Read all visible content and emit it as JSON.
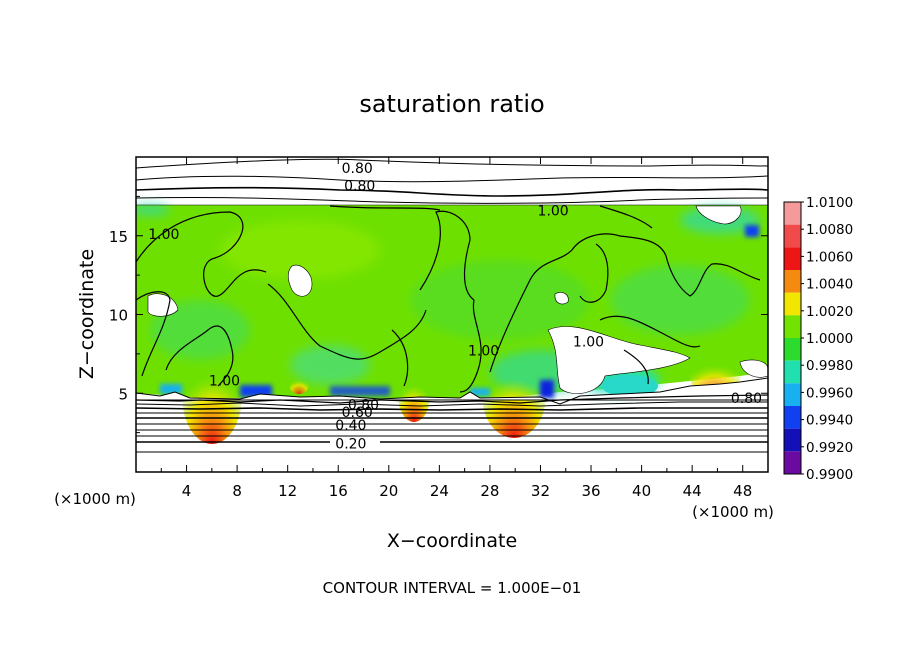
{
  "chart_data": {
    "type": "heatmap",
    "title": "saturation ratio",
    "xlabel": "X−coordinate",
    "ylabel": "Z−coordinate",
    "x_unit": "(×1000 m)",
    "x_unit_right": "(×1000 m)",
    "footer": "CONTOUR INTERVAL = 1.000E−01",
    "xlim": [
      0,
      50
    ],
    "ylim": [
      0,
      20
    ],
    "x_ticks": [
      4,
      8,
      12,
      16,
      20,
      24,
      28,
      32,
      36,
      40,
      44,
      48
    ],
    "y_ticks": [
      5,
      10,
      15
    ],
    "contour_labels": [
      {
        "text": "0.80",
        "x": 17.5,
        "y": 19.3
      },
      {
        "text": "0.80",
        "x": 17.7,
        "y": 18.2
      },
      {
        "text": "1.00",
        "x": 33.0,
        "y": 16.6
      },
      {
        "text": "1.00",
        "x": 2.2,
        "y": 15.1
      },
      {
        "text": "1.00",
        "x": 27.5,
        "y": 7.7
      },
      {
        "text": "1.00",
        "x": 35.8,
        "y": 8.3
      },
      {
        "text": "1.00",
        "x": 7.0,
        "y": 5.8
      },
      {
        "text": "0.80",
        "x": 48.3,
        "y": 4.7
      },
      {
        "text": "0.80",
        "x": 18.0,
        "y": 4.3
      },
      {
        "text": "0.60",
        "x": 17.5,
        "y": 3.8
      },
      {
        "text": "0.40",
        "x": 17.0,
        "y": 3.0
      },
      {
        "text": "0.20",
        "x": 17.0,
        "y": 1.8
      }
    ],
    "colorbar": {
      "labels": [
        "1.0100",
        "1.0080",
        "1.0060",
        "1.0040",
        "1.0020",
        "1.0000",
        "0.9980",
        "0.9960",
        "0.9940",
        "0.9920",
        "0.9900"
      ],
      "colors": [
        "#f59a9a",
        "#f04a4a",
        "#ee1515",
        "#f58a10",
        "#f2e600",
        "#72e200",
        "#2cdc2c",
        "#20e0b0",
        "#18b0f0",
        "#1040f0",
        "#1410b8",
        "#6a0aa0"
      ]
    },
    "cloud_layer_z": [
      5.0,
      17.0
    ],
    "grid": false
  }
}
